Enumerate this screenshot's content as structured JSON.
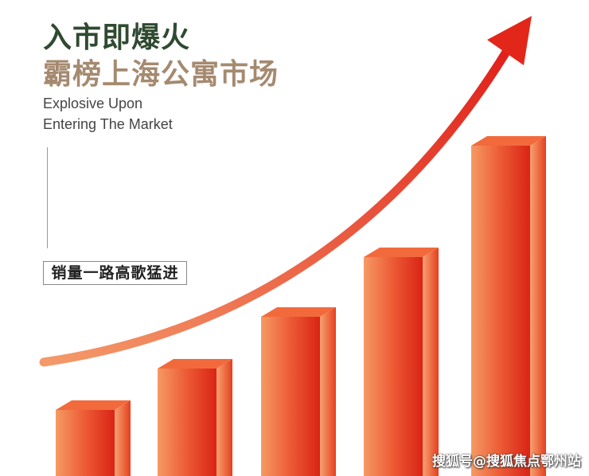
{
  "headline": {
    "line1": "入市即爆火",
    "line2": "霸榜上海公寓市场"
  },
  "subtitle": {
    "line1": "Explosive Upon",
    "line2": "Entering The Market"
  },
  "tag": "销量一路高歌猛进",
  "watermark": "搜狐号@搜狐焦点鄂州站",
  "colors": {
    "headline_dark": "#2f4a30",
    "headline_tan": "#a58a70",
    "bar_red": "#e2331c",
    "bar_orange": "#f7925a",
    "arrow": "#e8321e"
  },
  "bars": {
    "count": 5,
    "trend": "rising"
  }
}
